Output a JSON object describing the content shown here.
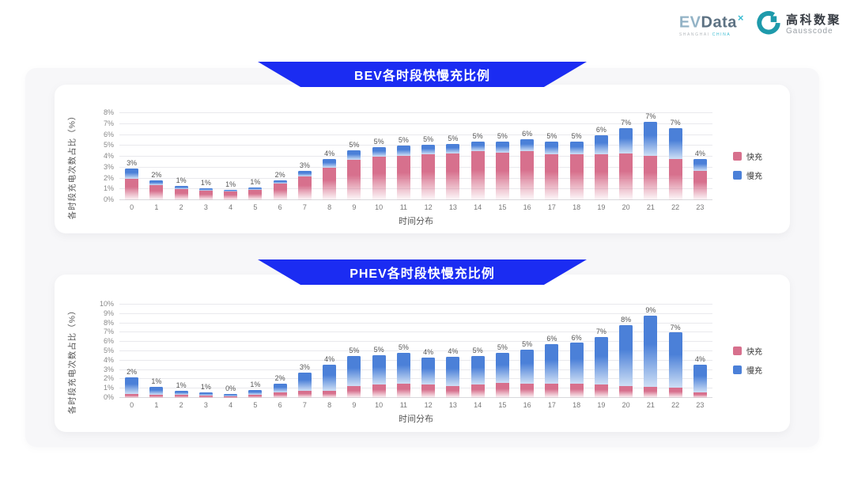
{
  "header": {
    "evdata": {
      "ev": "EV",
      "data_word": "Data",
      "sup": "×",
      "sub_left": "SHANGHAI",
      "sub_right": "CHINA"
    },
    "gausscode": {
      "cn": "高科数聚",
      "en": "Gausscode"
    }
  },
  "colors": {
    "banner_blue": "#1b2cf2",
    "fast_pink": "#d7708d",
    "slow_blue": "#4b80d8",
    "panel_bg": "#f7f7f9"
  },
  "chart_data": [
    {
      "type": "bar",
      "stacked": true,
      "title": "BEV各时段快慢充比例",
      "xlabel": "时间分布",
      "ylabel": "各时段充电次数占比（%）",
      "ylim": [
        0,
        8
      ],
      "y_tick_step": 1,
      "y_ticks": [
        "0%",
        "1%",
        "2%",
        "3%",
        "4%",
        "5%",
        "6%",
        "7%",
        "8%"
      ],
      "grid": true,
      "legend_position": "right",
      "categories": [
        "0",
        "1",
        "2",
        "3",
        "4",
        "5",
        "6",
        "7",
        "8",
        "9",
        "10",
        "11",
        "12",
        "13",
        "14",
        "15",
        "16",
        "17",
        "18",
        "19",
        "20",
        "21",
        "22",
        "23"
      ],
      "series": [
        {
          "name": "快充",
          "color": "#d7708d",
          "values": [
            2.0,
            1.4,
            1.0,
            0.85,
            0.8,
            0.95,
            1.5,
            2.2,
            3.0,
            3.7,
            4.0,
            4.1,
            4.2,
            4.3,
            4.5,
            4.4,
            4.5,
            4.2,
            4.2,
            4.2,
            4.3,
            4.1,
            3.8,
            2.7
          ]
        },
        {
          "name": "慢充",
          "color": "#4b80d8",
          "values": [
            0.9,
            0.4,
            0.3,
            0.25,
            0.15,
            0.2,
            0.35,
            0.5,
            0.8,
            0.9,
            0.9,
            0.9,
            0.9,
            0.9,
            0.9,
            1.0,
            1.1,
            1.2,
            1.2,
            1.8,
            2.3,
            3.1,
            2.8,
            1.1
          ]
        }
      ],
      "bar_labels": [
        "3%",
        "2%",
        "1%",
        "1%",
        "1%",
        "1%",
        "2%",
        "3%",
        "4%",
        "5%",
        "5%",
        "5%",
        "5%",
        "5%",
        "5%",
        "5%",
        "6%",
        "5%",
        "5%",
        "6%",
        "7%",
        "7%",
        "7%",
        "4%"
      ]
    },
    {
      "type": "bar",
      "stacked": true,
      "title": "PHEV各时段快慢充比例",
      "xlabel": "时间分布",
      "ylabel": "各时段充电次数占比（%）",
      "ylim": [
        0,
        10
      ],
      "y_tick_step": 1,
      "y_ticks": [
        "0%",
        "1%",
        "2%",
        "3%",
        "4%",
        "5%",
        "6%",
        "7%",
        "8%",
        "9%",
        "10%"
      ],
      "grid": true,
      "legend_position": "right",
      "categories": [
        "0",
        "1",
        "2",
        "3",
        "4",
        "5",
        "6",
        "7",
        "8",
        "9",
        "10",
        "11",
        "12",
        "13",
        "14",
        "15",
        "16",
        "17",
        "18",
        "19",
        "20",
        "21",
        "22",
        "23"
      ],
      "series": [
        {
          "name": "快充",
          "color": "#d7708d",
          "values": [
            0.45,
            0.3,
            0.3,
            0.25,
            0.2,
            0.3,
            0.6,
            0.8,
            0.8,
            1.3,
            1.4,
            1.5,
            1.4,
            1.3,
            1.4,
            1.6,
            1.5,
            1.5,
            1.5,
            1.4,
            1.3,
            1.2,
            1.1,
            0.6
          ]
        },
        {
          "name": "慢充",
          "color": "#4b80d8",
          "values": [
            1.75,
            0.9,
            0.5,
            0.35,
            0.25,
            0.55,
            0.95,
            1.95,
            2.8,
            3.2,
            3.2,
            3.3,
            2.9,
            3.1,
            3.1,
            3.2,
            3.7,
            4.3,
            4.4,
            5.1,
            6.5,
            7.6,
            5.9,
            3.0
          ]
        }
      ],
      "bar_labels": [
        "2%",
        "1%",
        "1%",
        "1%",
        "0%",
        "1%",
        "2%",
        "3%",
        "4%",
        "5%",
        "5%",
        "5%",
        "4%",
        "4%",
        "5%",
        "5%",
        "5%",
        "6%",
        "6%",
        "7%",
        "8%",
        "9%",
        "7%",
        "4%"
      ]
    }
  ]
}
